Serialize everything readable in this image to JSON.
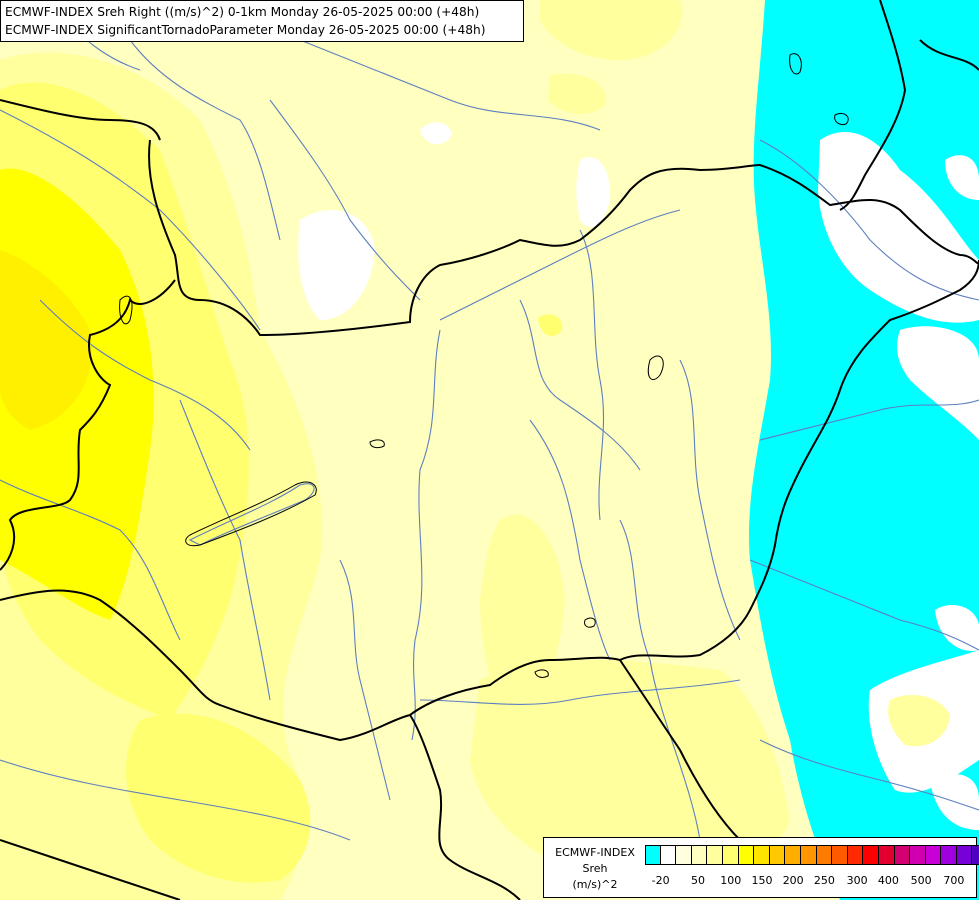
{
  "header": {
    "line1": "ECMWF-INDEX Sreh Right ((m/s)^2) 0-1km Monday 26-05-2025 00:00 (+48h)",
    "line2": "ECMWF-INDEX SignificantTornadoParameter Monday 26-05-2025 00:00 (+48h)"
  },
  "legend": {
    "title_lines": [
      "ECMWF-INDEX",
      "Sreh",
      "(m/s)^2"
    ],
    "colors": [
      "#00ffff",
      "#ffffff",
      "#ffffe0",
      "#ffffc0",
      "#ffff9e",
      "#ffff70",
      "#ffff00",
      "#ffe400",
      "#ffc800",
      "#ffae00",
      "#ff9600",
      "#ff7a00",
      "#ff5a00",
      "#ff2a00",
      "#ff0000",
      "#e10030",
      "#d20070",
      "#d000b0",
      "#c800d8",
      "#a000e0",
      "#7800d8",
      "#5000c0",
      "#3000a0",
      "#000080"
    ],
    "tick_labels": [
      "-20",
      "50",
      "100",
      "150",
      "200",
      "250",
      "300",
      "400",
      "500",
      "700"
    ]
  },
  "map_colors": {
    "background": "#ffffc0",
    "light_yellow": "#ffff9e",
    "yellow": "#ffff70",
    "strong_yellow": "#ffff00",
    "cyan": "#00ffff",
    "white": "#ffffff",
    "rivers": "#5d7fc0",
    "borders": "#000000"
  }
}
